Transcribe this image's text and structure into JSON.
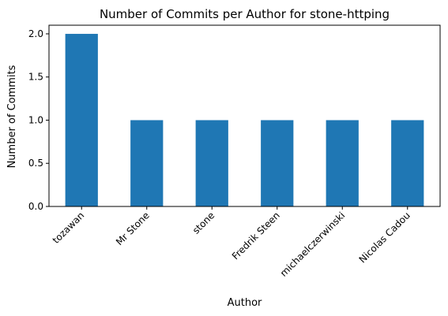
{
  "chart_data": {
    "type": "bar",
    "title": "Number of Commits per Author for stone-httping",
    "xlabel": "Author",
    "ylabel": "Number of Commits",
    "categories": [
      "tozawan",
      "Mr Stone",
      "stone",
      "Fredrik Steen",
      "michaelczerwinski",
      "Nicolas Cadou"
    ],
    "values": [
      2,
      1,
      1,
      1,
      1,
      1
    ],
    "ylim": [
      0,
      2.1
    ],
    "yticks": [
      "0.0",
      "0.5",
      "1.0",
      "1.5",
      "2.0"
    ],
    "grid": false,
    "legend": "none",
    "bar_color": "#1f77b4"
  }
}
